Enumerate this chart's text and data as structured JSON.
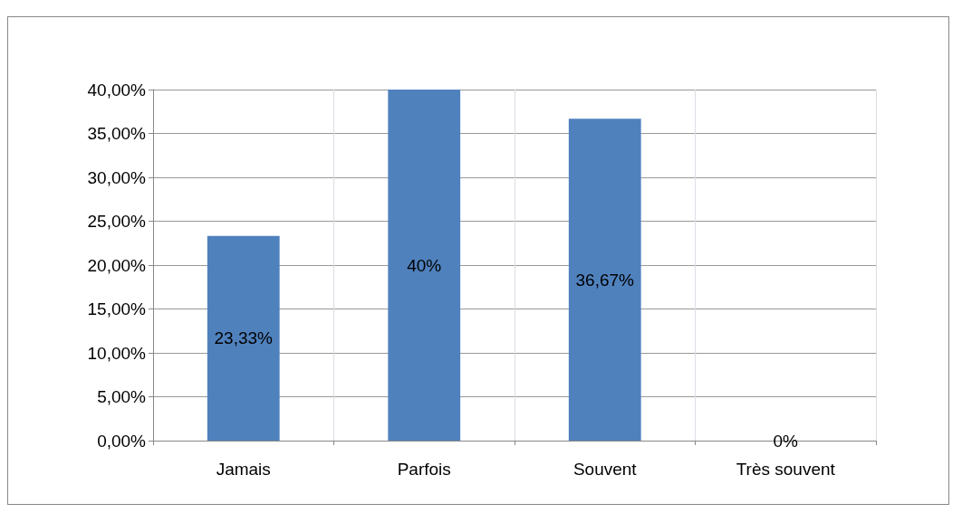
{
  "chart_data": {
    "type": "bar",
    "categories": [
      "Jamais",
      "Parfois",
      "Souvent",
      "Très souvent"
    ],
    "values": [
      23.33,
      40,
      36.67,
      0
    ],
    "value_labels": [
      "23,33%",
      "40%",
      "36,67%",
      "0%"
    ],
    "color": "#4f81bd",
    "ylim": [
      0,
      40
    ],
    "yticks": [
      {
        "value": 0,
        "label": "0,00%"
      },
      {
        "value": 5,
        "label": "5,00%"
      },
      {
        "value": 10,
        "label": "10,00%"
      },
      {
        "value": 15,
        "label": "15,00%"
      },
      {
        "value": 20,
        "label": "20,00%"
      },
      {
        "value": 25,
        "label": "25,00%"
      },
      {
        "value": 30,
        "label": "30,00%"
      },
      {
        "value": 35,
        "label": "35,00%"
      },
      {
        "value": 40,
        "label": "40,00%"
      }
    ],
    "grid": true
  }
}
